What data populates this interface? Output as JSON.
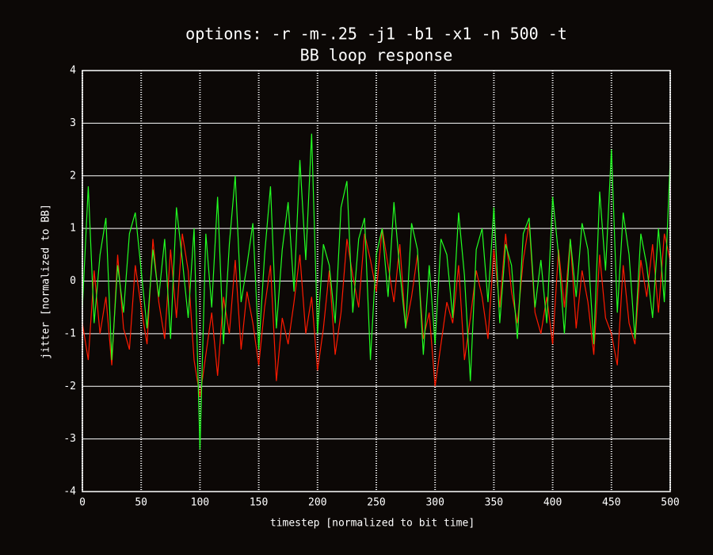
{
  "chart_data": {
    "type": "line",
    "title": "options:  -r -m-.25 -j1 -b1 -x1 -n 500 -t",
    "subtitle": "BB loop response",
    "x_label": "timestep [normalized to bit time]",
    "y_label": "jitter [normalized to BB]",
    "x": [
      0,
      5,
      10,
      15,
      20,
      25,
      30,
      35,
      40,
      45,
      50,
      55,
      60,
      65,
      70,
      75,
      80,
      85,
      90,
      95,
      100,
      105,
      110,
      115,
      120,
      125,
      130,
      135,
      140,
      145,
      150,
      155,
      160,
      165,
      170,
      175,
      180,
      185,
      190,
      195,
      200,
      205,
      210,
      215,
      220,
      225,
      230,
      235,
      240,
      245,
      250,
      255,
      260,
      265,
      270,
      275,
      280,
      285,
      290,
      295,
      300,
      305,
      310,
      315,
      320,
      325,
      330,
      335,
      340,
      345,
      350,
      355,
      360,
      365,
      370,
      375,
      380,
      385,
      390,
      395,
      400,
      405,
      410,
      415,
      420,
      425,
      430,
      435,
      440,
      445,
      450,
      455,
      460,
      465,
      470,
      475,
      480,
      485,
      490,
      495,
      500
    ],
    "series": [
      {
        "color": "#ff1a00",
        "values": [
          -0.8,
          -1.5,
          0.2,
          -1.0,
          -0.3,
          -1.6,
          0.5,
          -0.9,
          -1.3,
          0.3,
          -0.5,
          -1.2,
          0.8,
          -0.4,
          -1.1,
          0.6,
          -0.7,
          0.9,
          0.2,
          -1.5,
          -2.2,
          -1.4,
          -0.6,
          -1.8,
          -0.3,
          -1.0,
          0.4,
          -1.3,
          -0.2,
          -0.8,
          -1.6,
          -0.5,
          0.3,
          -1.9,
          -0.7,
          -1.2,
          -0.4,
          0.5,
          -1.0,
          -0.3,
          -1.7,
          -0.9,
          0.2,
          -1.4,
          -0.6,
          0.8,
          0.1,
          -0.5,
          0.9,
          0.4,
          -0.2,
          1.0,
          0.3,
          -0.4,
          0.7,
          -0.9,
          -0.3,
          0.5,
          -1.1,
          -0.6,
          -2.0,
          -1.2,
          -0.4,
          -0.8,
          0.3,
          -1.5,
          -0.7,
          0.2,
          -0.3,
          -1.1,
          0.6,
          -0.5,
          0.9,
          -0.2,
          -0.8,
          0.4,
          1.1,
          -0.6,
          -1.0,
          -0.3,
          -1.2,
          0.6,
          -0.5,
          0.8,
          -0.9,
          0.2,
          -0.4,
          -1.4,
          0.5,
          -0.7,
          -1.0,
          -1.6,
          0.3,
          -0.8,
          -1.2,
          0.4,
          -0.3,
          0.7,
          -0.6,
          0.9,
          0.4
        ]
      },
      {
        "color": "#22ff22",
        "values": [
          -0.5,
          1.8,
          -0.8,
          0.5,
          1.2,
          -1.5,
          0.3,
          -0.6,
          0.9,
          1.3,
          0.2,
          -0.9,
          0.6,
          -0.3,
          0.8,
          -1.1,
          1.4,
          0.4,
          -0.7,
          1.0,
          -3.2,
          0.9,
          -0.5,
          1.6,
          -1.2,
          0.7,
          2.0,
          -0.4,
          0.3,
          1.1,
          -1.3,
          0.5,
          1.8,
          -0.9,
          0.6,
          1.5,
          -0.2,
          2.3,
          0.4,
          2.8,
          -1.0,
          0.7,
          0.3,
          -0.8,
          1.4,
          1.9,
          -0.6,
          0.8,
          1.2,
          -1.5,
          0.5,
          1.0,
          -0.3,
          1.5,
          0.2,
          -0.9,
          1.1,
          0.6,
          -1.4,
          0.3,
          -1.2,
          0.8,
          0.5,
          -0.7,
          1.3,
          0.1,
          -1.9,
          0.6,
          1.0,
          -0.4,
          1.4,
          -0.8,
          0.7,
          0.3,
          -1.1,
          0.9,
          1.2,
          -0.5,
          0.4,
          -0.8,
          1.6,
          0.5,
          -1.0,
          0.8,
          -0.3,
          1.1,
          0.6,
          -1.2,
          1.7,
          0.2,
          2.5,
          -0.6,
          1.3,
          0.5,
          -1.1,
          0.9,
          0.3,
          -0.7,
          1.0,
          -0.4,
          2.3
        ]
      }
    ],
    "xlim": [
      0,
      500
    ],
    "xticks": [
      0,
      50,
      100,
      150,
      200,
      250,
      300,
      350,
      400,
      450,
      500
    ],
    "ylim": [
      -4,
      4
    ],
    "yticks": [
      -4,
      -3,
      -2,
      -1,
      0,
      1,
      2,
      3,
      4
    ],
    "grid": true
  }
}
